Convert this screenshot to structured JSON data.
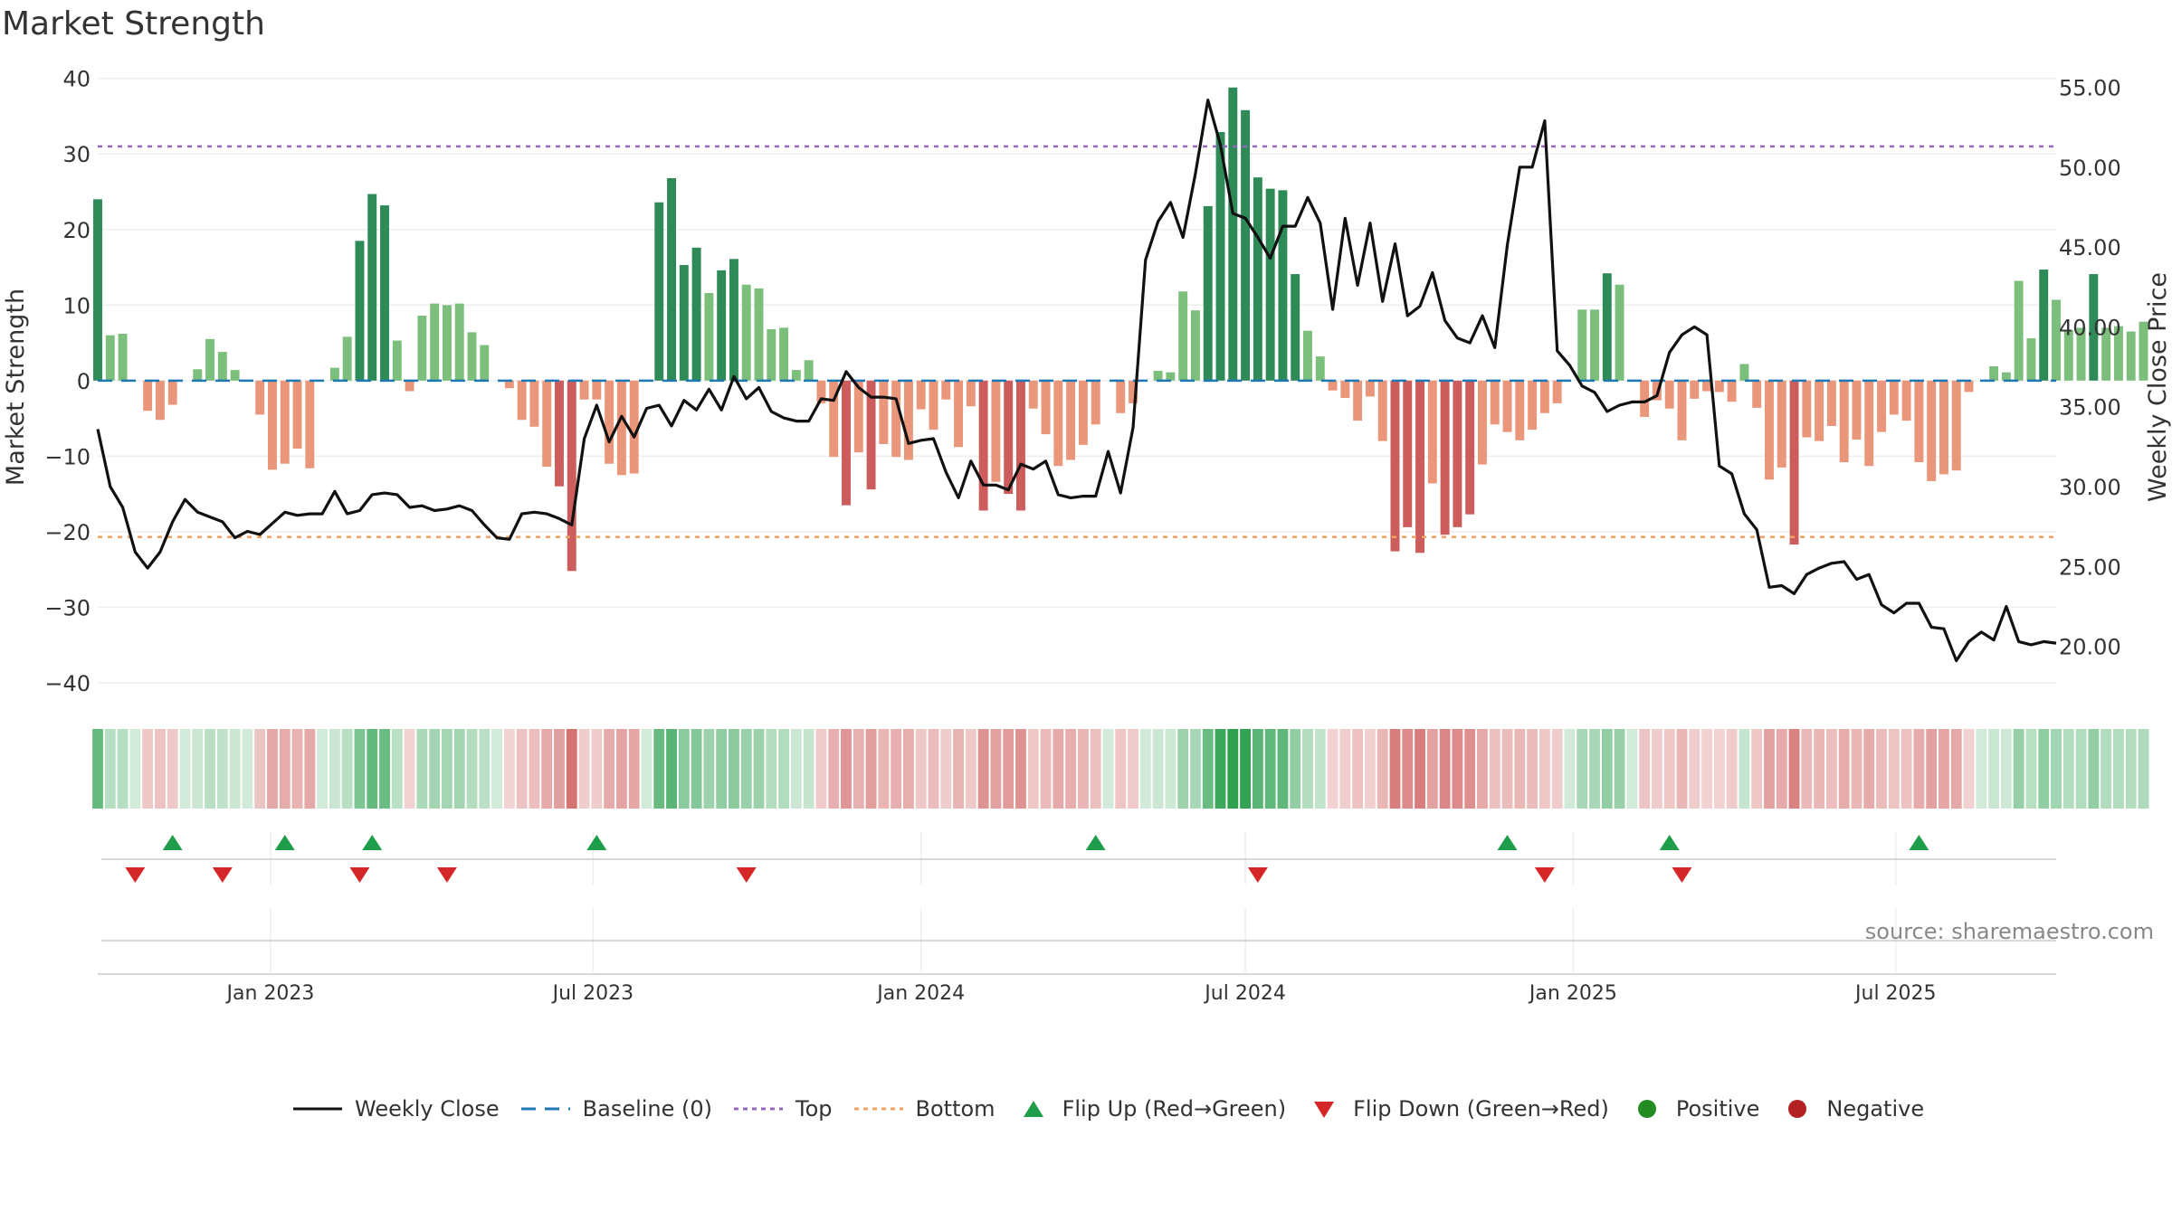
{
  "title": "Market Strength",
  "source": "source: sharemaestro.com",
  "colors": {
    "pos_strong": "#2e8b57",
    "pos_weak": "#7cbf7c",
    "neg_strong": "#cd5c5c",
    "neg_weak": "#e9967a",
    "line": "#111111",
    "baseline": "#1f77b4",
    "top": "#9467bd",
    "bottom": "#f4a261",
    "flip_up": "#1e9e4a",
    "flip_down": "#d62728",
    "positive": "#228b22",
    "negative": "#b22222"
  },
  "chart_data": {
    "type": "bar",
    "title": "Market Strength",
    "ylabel_left": "Market Strength",
    "ylabel_right": "Weekly Close Price",
    "ylim_left": [
      -43,
      42
    ],
    "ylim_right": [
      16.3,
      56.5
    ],
    "yticks_left": [
      40,
      30,
      20,
      10,
      0,
      -10,
      -20,
      -30,
      -40
    ],
    "ytick_labels_left": [
      "40",
      "30",
      "20",
      "10",
      "0",
      "−10",
      "−20",
      "−30",
      "−40"
    ],
    "yticks_right": [
      55,
      50,
      45,
      40,
      35,
      30,
      25,
      20
    ],
    "ytick_labels_right": [
      "55.00",
      "50.00",
      "45.00",
      "40.00",
      "35.00",
      "30.00",
      "25.00",
      "20.00"
    ],
    "x_range": [
      "2022-09-26",
      "2025-09-29"
    ],
    "xticks": [
      {
        "date": "2023-01-01",
        "label": "Jan 2023"
      },
      {
        "date": "2023-07-01",
        "label": "Jul 2023"
      },
      {
        "date": "2024-01-01",
        "label": "Jan 2024"
      },
      {
        "date": "2024-07-01",
        "label": "Jul 2024"
      },
      {
        "date": "2025-01-01",
        "label": "Jan 2025"
      },
      {
        "date": "2025-07-01",
        "label": "Jul 2025"
      }
    ],
    "start_date": "2022-09-26",
    "interval": "weekly",
    "strength": [
      24,
      6,
      6.2,
      0,
      -4,
      -5.2,
      -3.2,
      0,
      1.5,
      5.5,
      3.8,
      1.4,
      0,
      -4.5,
      -11.8,
      -11,
      -9,
      -11.6,
      0,
      1.7,
      5.8,
      18.5,
      24.7,
      23.2,
      5.3,
      -1.4,
      8.6,
      10.2,
      10,
      10.2,
      6.4,
      4.7,
      0,
      -1,
      -5.2,
      -6.1,
      -11.4,
      -14,
      -25.2,
      -2.5,
      -2.5,
      -11,
      -12.5,
      -12.3,
      0,
      23.6,
      26.8,
      15.3,
      17.6,
      11.6,
      14.6,
      16.1,
      12.7,
      12.2,
      6.8,
      7,
      1.4,
      2.7,
      -3,
      -10.1,
      -16.5,
      -9.5,
      -14.4,
      -8.4,
      -10.1,
      -10.5,
      -3.8,
      -6.5,
      -2.5,
      -8.8,
      -3.4,
      -17.2,
      -13.4,
      -15,
      -17.2,
      -3.7,
      -7.1,
      -11.3,
      -10.5,
      -8.5,
      -5.8,
      0,
      -4.3,
      -3,
      0,
      1.3,
      1.1,
      11.8,
      9.3,
      23.1,
      32.9,
      38.8,
      35.8,
      26.9,
      25.4,
      25.2,
      14.1,
      6.6,
      3.2,
      -1.3,
      -2.3,
      -5.3,
      -2.1,
      -8,
      -22.6,
      -19.4,
      -22.8,
      -13.6,
      -20.4,
      -19.4,
      -17.7,
      -11.1,
      -5.8,
      -6.8,
      -7.9,
      -6.5,
      -4.3,
      -3,
      0,
      9.4,
      9.4,
      14.2,
      12.7,
      0,
      -4.8,
      -2.6,
      -3.7,
      -7.9,
      -2.4,
      -1.4,
      -1.5,
      -2.8,
      2.2,
      -3.6,
      -13.1,
      -11.5,
      -21.7,
      -7.5,
      -8,
      -6,
      -10.8,
      -7.8,
      -11.3,
      -6.8,
      -4.5,
      -5.3,
      -10.8,
      -13.3,
      -12.4,
      -11.9,
      -1.5,
      0,
      1.9,
      1.1,
      13.2,
      5.6,
      14.7,
      10.7,
      6.7,
      7,
      14.1,
      7,
      7.2,
      6.5,
      7.8
    ],
    "close": [
      33.6,
      30,
      28.7,
      25.9,
      24.9,
      25.9,
      27.8,
      29.2,
      28.4,
      28.1,
      27.8,
      26.8,
      27.2,
      27,
      27.7,
      28.4,
      28.2,
      28.3,
      28.3,
      29.7,
      28.3,
      28.5,
      29.5,
      29.6,
      29.5,
      28.7,
      28.8,
      28.5,
      28.6,
      28.8,
      28.5,
      27.6,
      26.8,
      26.7,
      28.3,
      28.4,
      28.3,
      28,
      27.6,
      33,
      35.1,
      32.8,
      34.4,
      33.1,
      34.9,
      35.1,
      33.8,
      35.4,
      34.8,
      36.1,
      34.8,
      36.9,
      35.5,
      36.2,
      34.7,
      34.3,
      34.1,
      34.1,
      35.5,
      35.4,
      37.2,
      36.2,
      35.6,
      35.6,
      35.5,
      32.7,
      32.9,
      33,
      30.9,
      29.3,
      31.6,
      30.1,
      30.1,
      29.8,
      31.4,
      31.1,
      31.6,
      29.5,
      29.3,
      29.4,
      29.4,
      32.2,
      29.6,
      33.7,
      44.2,
      46.6,
      47.8,
      45.6,
      49.6,
      54.2,
      51.4,
      47.1,
      46.8,
      45.6,
      44.3,
      46.3,
      46.3,
      48.1,
      46.5,
      41.1,
      46.8,
      42.6,
      46.5,
      41.6,
      45.2,
      40.7,
      41.3,
      43.4,
      40.4,
      39.3,
      39,
      40.7,
      38.7,
      45.1,
      50,
      50,
      52.9,
      38.5,
      37.6,
      36.3,
      35.9,
      34.7,
      35.1,
      35.3,
      35.3,
      35.7,
      38.4,
      39.5,
      40,
      39.5,
      31.3,
      30.8,
      28.3,
      27.3,
      23.7,
      23.8,
      23.3,
      24.5,
      24.9,
      25.2,
      25.3,
      24.2,
      24.5,
      22.6,
      22.1,
      22.7,
      22.7,
      21.2,
      21.1,
      19.1,
      20.3,
      20.9,
      20.4,
      22.5,
      20.3,
      20.1,
      20.3,
      20.2
    ],
    "series": [
      {
        "name": "Weekly Close",
        "style": "solid-line"
      },
      {
        "name": "Baseline (0)",
        "style": "dashed-line",
        "value": 0
      },
      {
        "name": "Top",
        "style": "dotted-line",
        "value": 31
      },
      {
        "name": "Bottom",
        "style": "dotted-line",
        "value": -20.7
      },
      {
        "name": "Flip Up (Red→Green)",
        "style": "triangle-up"
      },
      {
        "name": "Flip Down (Green→Red)",
        "style": "triangle-down"
      },
      {
        "name": "Positive",
        "style": "dot"
      },
      {
        "name": "Negative",
        "style": "dot"
      }
    ],
    "flip_up_weeks": [
      6,
      15,
      22,
      40,
      80,
      113,
      126,
      146
    ],
    "flip_down_weeks": [
      3,
      10,
      21,
      28,
      52,
      93,
      116,
      127
    ],
    "legend_position": "bottom",
    "grid": true
  },
  "legend": [
    {
      "label": "Weekly Close",
      "icon": "line-solid-icon"
    },
    {
      "label": "Baseline (0)",
      "icon": "line-dashed-icon"
    },
    {
      "label": "Top",
      "icon": "line-dotted-purple-icon"
    },
    {
      "label": "Bottom",
      "icon": "line-dotted-orange-icon"
    },
    {
      "label": "Flip Up (Red→Green)",
      "icon": "triangle-up-icon"
    },
    {
      "label": "Flip Down (Green→Red)",
      "icon": "triangle-down-icon"
    },
    {
      "label": "Positive",
      "icon": "green-dot-icon"
    },
    {
      "label": "Negative",
      "icon": "red-dot-icon"
    }
  ]
}
